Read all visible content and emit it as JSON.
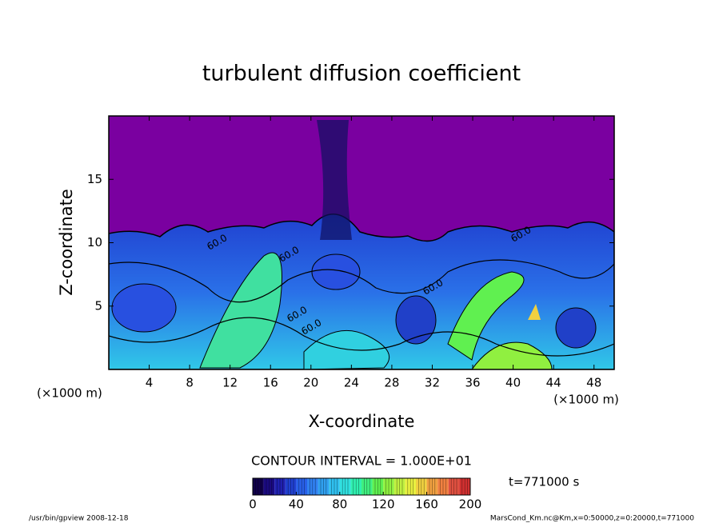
{
  "chart_data": {
    "type": "contour",
    "title": "turbulent diffusion coefficient",
    "x_label": "X-coordinate",
    "y_label": "Z-coordinate",
    "x_unit": "(×1000 m)",
    "y_unit": "(×1000 m)",
    "xlim": [
      0,
      50
    ],
    "xticks": [
      4,
      8,
      12,
      16,
      20,
      24,
      28,
      32,
      36,
      40,
      44,
      48
    ],
    "ylim": [
      0,
      20
    ],
    "yticks": [
      5,
      10,
      15
    ],
    "contour_interval": "CONTOUR INTERVAL = 1.000E+01",
    "time": "t=771000 s",
    "contour_labels": [
      "60.0",
      "60.0",
      "60.0",
      "60.0",
      "60.0",
      "60.0"
    ],
    "colorbar": {
      "lim": [
        0,
        200
      ],
      "ticks": [
        0,
        40,
        80,
        120,
        160,
        200
      ],
      "colors": [
        "#10004a",
        "#1a0a80",
        "#1f20b0",
        "#2040d0",
        "#2860e8",
        "#3080f0",
        "#30a0f0",
        "#30c0f0",
        "#30e0e0",
        "#30f0b0",
        "#40f080",
        "#60f050",
        "#90f040",
        "#c0f040",
        "#e8f040",
        "#f0d040",
        "#f0a040",
        "#f08040",
        "#e05040",
        "#d03030"
      ]
    }
  },
  "footer": {
    "left": "/usr/bin/gpview   2008-12-18",
    "right": "MarsCond_Km.nc@Km,x=0:50000,z=0:20000,t=771000"
  }
}
